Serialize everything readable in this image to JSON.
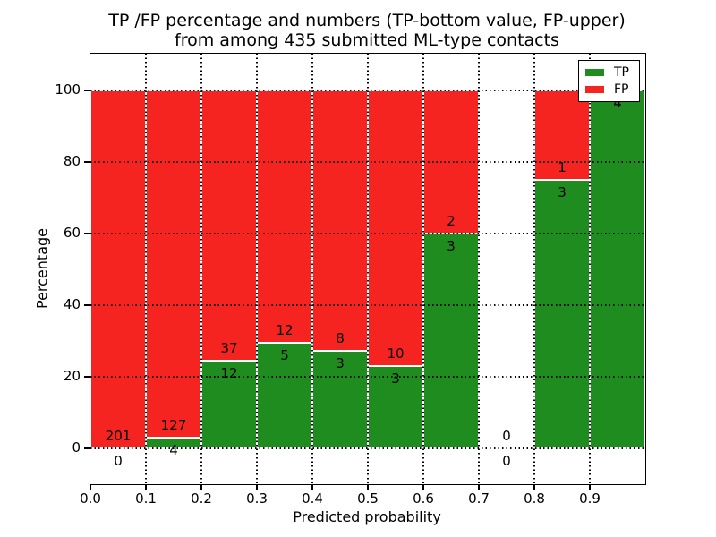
{
  "chart_data": {
    "type": "bar",
    "stacked": true,
    "title": "TP /FP percentage and numbers (TP-bottom value, FP-upper)\nfrom among 435 submitted ML-type contacts",
    "title_lines": [
      "TP /FP percentage and numbers (TP-bottom value, FP-upper)",
      "from among 435 submitted ML-type contacts"
    ],
    "xlabel": "Predicted probability",
    "ylabel": "Percentage",
    "x_ticks": [
      "0.0",
      "0.1",
      "0.2",
      "0.3",
      "0.4",
      "0.5",
      "0.6",
      "0.7",
      "0.8",
      "0.9"
    ],
    "y_ticks": [
      0,
      20,
      40,
      60,
      80,
      100
    ],
    "xlim": [
      0.0,
      1.0
    ],
    "ylim": [
      -10,
      110
    ],
    "grid": "dotted",
    "bin_width": 0.1,
    "categories": [
      "0.0-0.1",
      "0.1-0.2",
      "0.2-0.3",
      "0.3-0.4",
      "0.4-0.5",
      "0.5-0.6",
      "0.6-0.7",
      "0.7-0.8",
      "0.8-0.9",
      "0.9-1.0"
    ],
    "series": [
      {
        "name": "TP",
        "color": "#1e8c1e",
        "values": [
          0,
          4,
          12,
          5,
          3,
          3,
          3,
          0,
          3,
          4
        ]
      },
      {
        "name": "FP",
        "color": "#f52420",
        "values": [
          201,
          127,
          37,
          12,
          8,
          10,
          2,
          0,
          1,
          0
        ]
      }
    ],
    "bar_value_labels": {
      "tp_position": "below-boundary",
      "fp_position": "above-boundary",
      "fp_label_hidden_bins": [
        9
      ]
    },
    "legend": {
      "position": "upper-right",
      "entries": [
        "TP",
        "FP"
      ]
    }
  }
}
